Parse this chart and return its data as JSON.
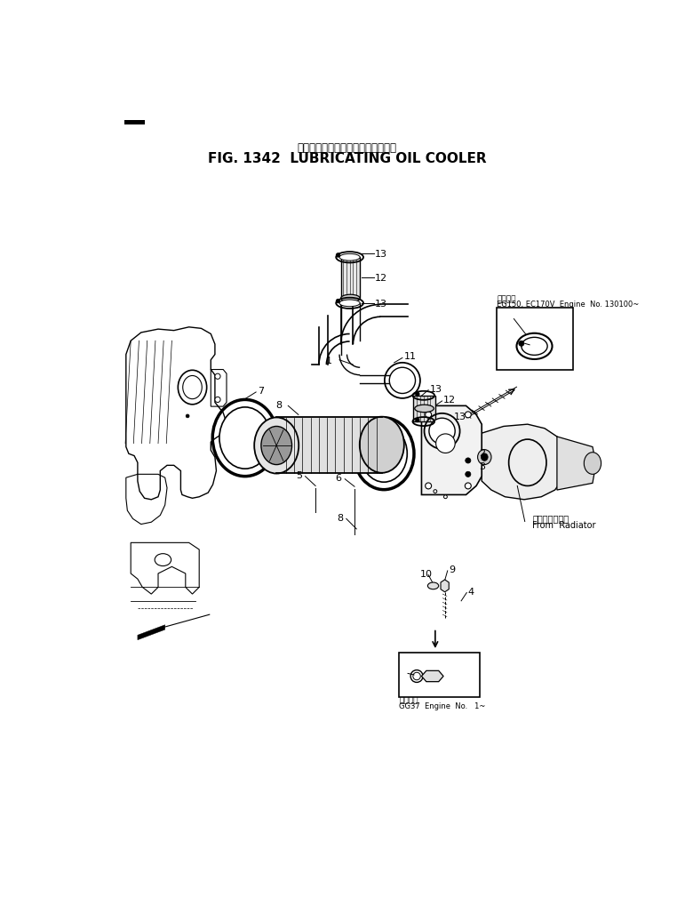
{
  "title_japanese": "ルーブリケーティングオイルクーラ",
  "title_english": "FIG. 1342  LUBRICATING OIL COOLER",
  "bg_color": "#ffffff",
  "inset_note_jp": "適用番号",
  "inset_note_eng1": "EG150, EC170V  Engine  No. 130100~",
  "inset_note2_jp": "適用番号",
  "inset_note2_eng": "GG37  Engine  No.   1~",
  "radiator_jp": "ラジエータから",
  "radiator_eng": "From  Radiator"
}
